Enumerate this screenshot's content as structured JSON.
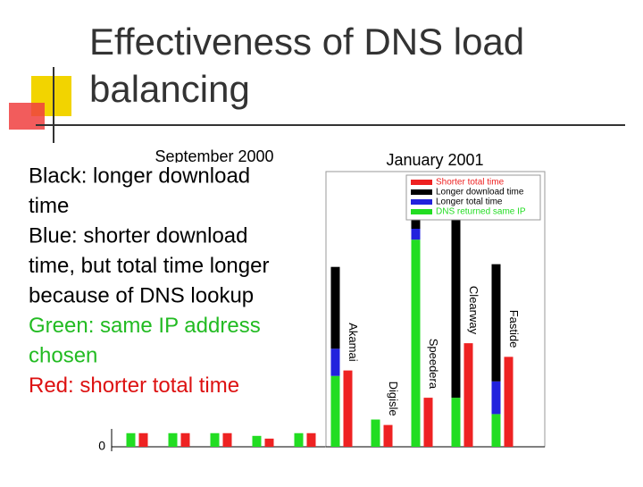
{
  "slide": {
    "title": [
      "Effectiveness of DNS load",
      "balancing"
    ],
    "caption": [
      {
        "text": "Black:  longer download",
        "color": "#000000"
      },
      {
        "text": "time",
        "color": "#000000"
      },
      {
        "text": "Blue:  shorter download",
        "color": "#000000"
      },
      {
        "text": "time, but total time longer",
        "color": "#000000"
      },
      {
        "text": "because of DNS lookup",
        "color": "#000000"
      },
      {
        "text": "Green:  same IP address",
        "color": "#22bb22"
      },
      {
        "text": "chosen",
        "color": "#22bb22"
      },
      {
        "text": "Red:  shorter total time",
        "color": "#dd1111"
      }
    ]
  },
  "chart_data": [
    {
      "type": "bar",
      "title": "September 2000",
      "categories": [
        null,
        null,
        null,
        null,
        null
      ],
      "ylim": [
        0,
        100
      ],
      "yticks": [
        0
      ],
      "series": [
        {
          "name": null,
          "color": "#22dd22",
          "stacked": false,
          "values": [
            5,
            5,
            5,
            4,
            5
          ]
        },
        {
          "name": null,
          "color": "#ee2222",
          "stacked": false,
          "values": [
            5,
            5,
            5,
            3,
            5
          ]
        }
      ]
    },
    {
      "type": "bar",
      "title": "January 2001",
      "categories": [
        "Akamai",
        "Digisle",
        "Speedera",
        "Clearway",
        "Fastide"
      ],
      "ylim": [
        0,
        100
      ],
      "yticks": [],
      "series": [
        {
          "name": "DNS returned same IP",
          "color": "#22dd22",
          "stacked": true,
          "values": [
            26,
            10,
            76,
            18,
            12
          ]
        },
        {
          "name": "Longer total time",
          "color": "#2222dd",
          "stacked": true,
          "values": [
            10,
            0,
            4,
            0,
            12
          ]
        },
        {
          "name": "Longer download time",
          "color": "#000000",
          "stacked": true,
          "values": [
            30,
            0,
            11,
            70,
            43
          ]
        },
        {
          "name": "Shorter total time",
          "color": "#ee2222",
          "stacked": false,
          "values": [
            28,
            8,
            18,
            38,
            33
          ]
        }
      ]
    }
  ]
}
